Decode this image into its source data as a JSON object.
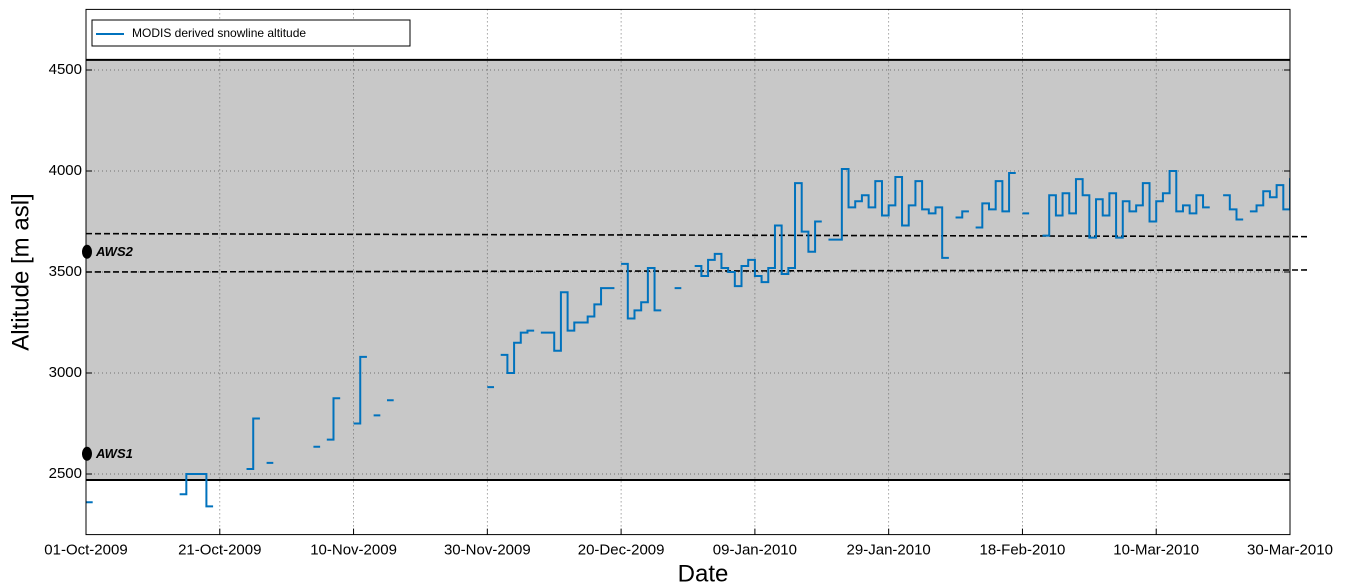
{
  "chart_data": {
    "type": "line",
    "xlabel": "Date",
    "ylabel": "Altitude [m asl]",
    "xlim": [
      "2009-10-01",
      "2010-03-30"
    ],
    "xticks": [
      {
        "value": "2009-10-01",
        "label": "01-Oct-2009"
      },
      {
        "value": "2009-10-21",
        "label": "21-Oct-2009"
      },
      {
        "value": "2009-11-10",
        "label": "10-Nov-2009"
      },
      {
        "value": "2009-11-30",
        "label": "30-Nov-2009"
      },
      {
        "value": "2009-12-20",
        "label": "20-Dec-2009"
      },
      {
        "value": "2010-01-09",
        "label": "09-Jan-2010"
      },
      {
        "value": "2010-01-29",
        "label": "29-Jan-2010"
      },
      {
        "value": "2010-02-18",
        "label": "18-Feb-2010"
      },
      {
        "value": "2010-03-10",
        "label": "10-Mar-2010"
      },
      {
        "value": "2010-03-30",
        "label": "30-Mar-2010"
      }
    ],
    "ylim": [
      2200,
      4800
    ],
    "yticks": [
      2500,
      3000,
      3500,
      4000,
      4500
    ],
    "grid": true,
    "legend": "upper left",
    "step": true,
    "shaded_range": [
      2470,
      4550
    ],
    "reference_lines": [
      {
        "values": [
          3690,
          3675
        ]
      },
      {
        "values": [
          3500,
          3510
        ]
      }
    ],
    "points": [
      {
        "label": "AWS1",
        "value": 2600
      },
      {
        "label": "AWS2",
        "value": 3600
      }
    ],
    "x": [
      "2009-10-01",
      "2009-10-02",
      "2009-10-15",
      "2009-10-16",
      "2009-10-17",
      "2009-10-18",
      "2009-10-19",
      "2009-10-20",
      "2009-10-25",
      "2009-10-26",
      "2009-10-27",
      "2009-10-28",
      "2009-10-29",
      "2009-11-04",
      "2009-11-05",
      "2009-11-06",
      "2009-11-07",
      "2009-11-08",
      "2009-11-10",
      "2009-11-11",
      "2009-11-12",
      "2009-11-13",
      "2009-11-14",
      "2009-11-15",
      "2009-11-16",
      "2009-11-30",
      "2009-12-01",
      "2009-12-02",
      "2009-12-03",
      "2009-12-04",
      "2009-12-05",
      "2009-12-06",
      "2009-12-07",
      "2009-12-08",
      "2009-12-09",
      "2009-12-10",
      "2009-12-11",
      "2009-12-12",
      "2009-12-13",
      "2009-12-14",
      "2009-12-15",
      "2009-12-16",
      "2009-12-17",
      "2009-12-18",
      "2009-12-19",
      "2009-12-20",
      "2009-12-21",
      "2009-12-22",
      "2009-12-23",
      "2009-12-24",
      "2009-12-25",
      "2009-12-26",
      "2009-12-28",
      "2009-12-29",
      "2009-12-31",
      "2010-01-01",
      "2010-01-02",
      "2010-01-03",
      "2010-01-04",
      "2010-01-05",
      "2010-01-06",
      "2010-01-07",
      "2010-01-08",
      "2010-01-09",
      "2010-01-10",
      "2010-01-11",
      "2010-01-12",
      "2010-01-13",
      "2010-01-14",
      "2010-01-15",
      "2010-01-16",
      "2010-01-17",
      "2010-01-18",
      "2010-01-19",
      "2010-01-20",
      "2010-01-21",
      "2010-01-22",
      "2010-01-23",
      "2010-01-24",
      "2010-01-25",
      "2010-01-26",
      "2010-01-27",
      "2010-01-28",
      "2010-01-29",
      "2010-01-30",
      "2010-01-31",
      "2010-02-01",
      "2010-02-02",
      "2010-02-03",
      "2010-02-04",
      "2010-02-05",
      "2010-02-06",
      "2010-02-07",
      "2010-02-08",
      "2010-02-09",
      "2010-02-10",
      "2010-02-11",
      "2010-02-12",
      "2010-02-13",
      "2010-02-14",
      "2010-02-15",
      "2010-02-16",
      "2010-02-17",
      "2010-02-18",
      "2010-02-19",
      "2010-02-21",
      "2010-02-22",
      "2010-02-23",
      "2010-02-24",
      "2010-02-25",
      "2010-02-26",
      "2010-02-27",
      "2010-02-28",
      "2010-03-01",
      "2010-03-02",
      "2010-03-03",
      "2010-03-04",
      "2010-03-05",
      "2010-03-06",
      "2010-03-07",
      "2010-03-08",
      "2010-03-09",
      "2010-03-10",
      "2010-03-11",
      "2010-03-12",
      "2010-03-13",
      "2010-03-14",
      "2010-03-15",
      "2010-03-16",
      "2010-03-17",
      "2010-03-18",
      "2010-03-20",
      "2010-03-21",
      "2010-03-22",
      "2010-03-23",
      "2010-03-24",
      "2010-03-25",
      "2010-03-26",
      "2010-03-27",
      "2010-03-28",
      "2010-03-29",
      "2010-03-30"
    ],
    "series": [
      {
        "name": "MODIS derived snowline altitude",
        "color": "#0072bd",
        "values": [
          2360,
          null,
          2400,
          2500,
          2500,
          2500,
          2340,
          null,
          2525,
          2775,
          null,
          2555,
          null,
          2635,
          null,
          2670,
          2875,
          null,
          2750,
          3080,
          null,
          2790,
          null,
          2865,
          null,
          2930,
          null,
          3090,
          3000,
          3150,
          3200,
          3210,
          null,
          3200,
          3200,
          3110,
          3400,
          3210,
          3250,
          3250,
          3280,
          3340,
          3420,
          3420,
          null,
          3540,
          3270,
          3310,
          3350,
          3520,
          3310,
          null,
          3420,
          null,
          3530,
          3480,
          3560,
          3590,
          3520,
          3500,
          3430,
          3530,
          3560,
          3480,
          3450,
          3520,
          3730,
          3490,
          3520,
          3940,
          3700,
          3600,
          3750,
          null,
          3660,
          3660,
          4010,
          3820,
          3850,
          3880,
          3820,
          3950,
          3780,
          3830,
          3970,
          3730,
          3830,
          3950,
          3810,
          3790,
          3820,
          3570,
          null,
          3770,
          3800,
          null,
          3720,
          3840,
          3810,
          3950,
          3800,
          3990,
          null,
          3790,
          null,
          3680,
          3880,
          3780,
          3890,
          3790,
          3960,
          3880,
          3670,
          3860,
          3780,
          3890,
          3670,
          3850,
          3800,
          3830,
          3940,
          3750,
          3850,
          3890,
          4000,
          3800,
          3830,
          3790,
          3880,
          3820,
          null,
          3880,
          3810,
          3760,
          null,
          3800,
          3830,
          3900,
          3870,
          3930,
          3810,
          3960
        ]
      }
    ]
  }
}
